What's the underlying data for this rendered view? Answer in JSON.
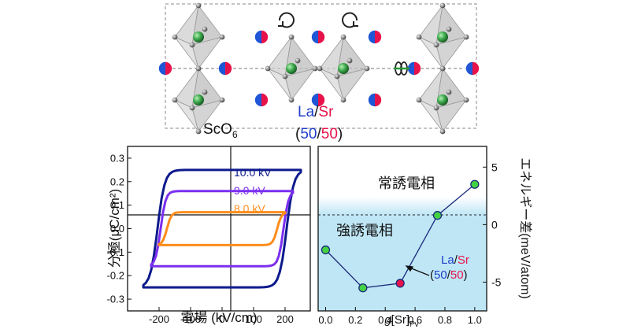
{
  "structure": {
    "label_octahedra_base": "ScO",
    "label_octahedra_sub": "6",
    "label_site_La": "La",
    "label_site_slash": "/",
    "label_site_Sr": "Sr",
    "label_ratio_open": "(",
    "label_ratio_a": "50",
    "label_ratio_slash": "/",
    "label_ratio_b": "50",
    "label_ratio_close": ")",
    "colors": {
      "La": "#1f56d6",
      "Sr": "#e8124a",
      "Sc": "#3aa84a",
      "O": "#8a8a8a"
    }
  },
  "chart_data": [
    {
      "type": "line",
      "subtype": "hysteresis",
      "xlabel": "電場 (kV/cm)",
      "ylabel": "分極(μC/cm²)",
      "xlim": [
        -300,
        280
      ],
      "ylim": [
        -0.35,
        0.35
      ],
      "x_ticks": [
        -200,
        -100,
        0,
        100,
        200
      ],
      "x_tick_labels": [
        "-200",
        "-100",
        "0",
        "100",
        "200"
      ],
      "y_ticks": [
        -0.3,
        -0.2,
        -0.1,
        0.0,
        0.1,
        0.2,
        0.3
      ],
      "y_tick_labels": [
        "-0.3",
        "-0.2",
        "-0.1",
        "0.0",
        "0.1",
        "0.2",
        "0.3"
      ],
      "series": [
        {
          "name": "10.0 kV",
          "color": "#0d1a8c",
          "Emax": 250,
          "Pmax": 0.245,
          "Pr": 0.25,
          "Ec": 205
        },
        {
          "name": "9.0 kV",
          "color": "#7b2ff0",
          "Emax": 225,
          "Pmax": 0.165,
          "Pr": 0.16,
          "Ec": 195
        },
        {
          "name": "8.0 kV",
          "color": "#ff8c1a",
          "Emax": 200,
          "Pmax": 0.075,
          "Pr": 0.07,
          "Ec": 175
        }
      ]
    },
    {
      "type": "scatter",
      "xlabel_prefix": "g",
      "xlabel_main": "[Sr]",
      "xlabel_sub": "Pv",
      "ylabel": "エネルギー差(meV/atom)",
      "xlim": [
        -0.05,
        1.08
      ],
      "ylim": [
        -7.5,
        6.8
      ],
      "x_ticks": [
        0.0,
        0.2,
        0.4,
        0.6,
        0.8,
        1.0
      ],
      "x_tick_labels": [
        "0.0",
        "0.2",
        "0.4",
        "0.6",
        "0.8",
        "1.0"
      ],
      "y_ticks": [
        -5,
        0,
        5
      ],
      "y_tick_labels": [
        "-5",
        "0",
        "5"
      ],
      "points": [
        {
          "x": 0.0,
          "y": -2.2
        },
        {
          "x": 0.25,
          "y": -5.5
        },
        {
          "x": 0.5,
          "y": -5.1,
          "highlight": true
        },
        {
          "x": 0.75,
          "y": 0.8
        },
        {
          "x": 1.0,
          "y": 3.5
        }
      ],
      "region_labels": {
        "paraelectric": "常誘電相",
        "ferroelectric": "強誘電相"
      },
      "annotation": {
        "line1_La": "La",
        "line1_slash": "/",
        "line1_Sr": "Sr",
        "line2_open": "(",
        "line2_a": "50",
        "line2_slash": "/",
        "line2_b": "50",
        "line2_close": ")"
      },
      "colors": {
        "line": "#1a2a7a",
        "marker": "#44d244",
        "highlight": "#e8124a",
        "ferro_region": "#bfe6f5"
      }
    }
  ]
}
